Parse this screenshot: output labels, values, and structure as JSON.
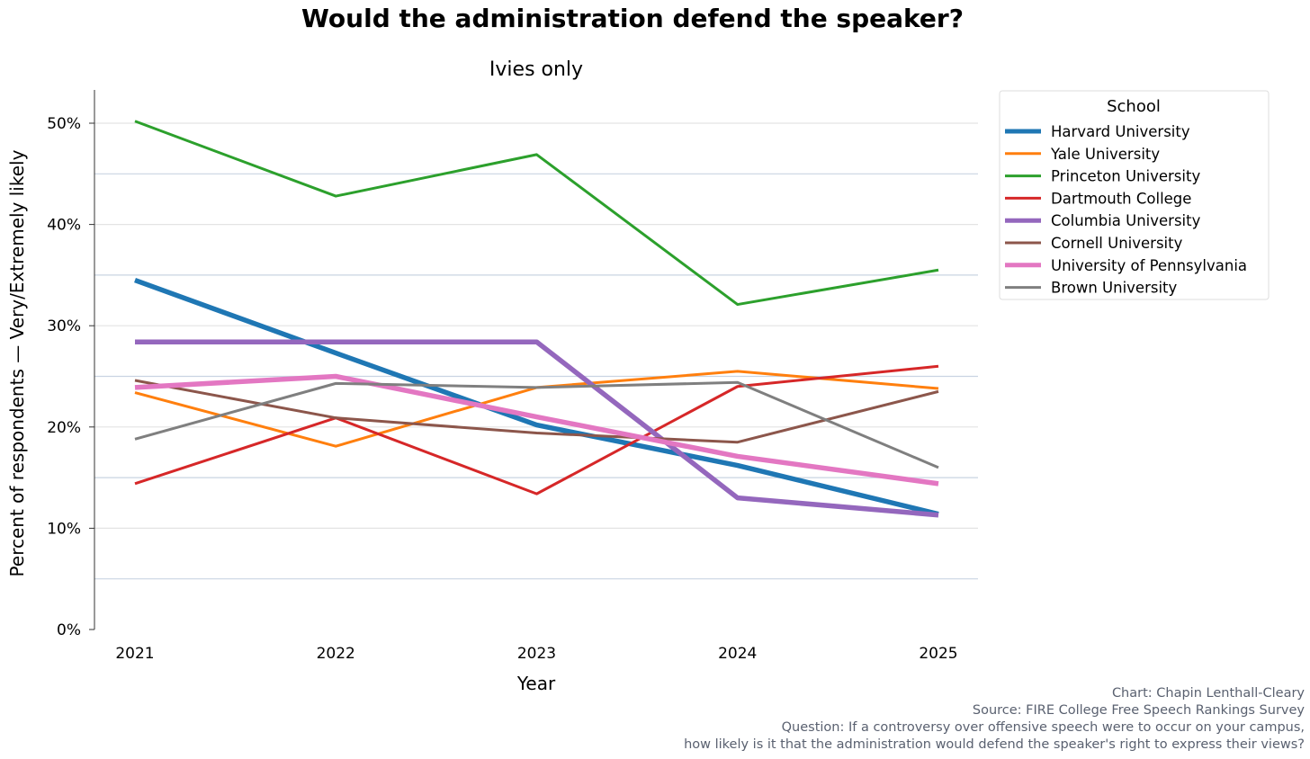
{
  "chart_data": {
    "type": "line",
    "title": "Would the administration defend the speaker?",
    "subtitle": "Ivies only",
    "xlabel": "Year",
    "ylabel": "Percent of respondents — Very/Extremely likely",
    "x": [
      2021,
      2022,
      2023,
      2024,
      2025
    ],
    "x_tick_labels": [
      "2021",
      "2022",
      "2023",
      "2024",
      "2025"
    ],
    "ylim": [
      0,
      53
    ],
    "y_ticks": [
      0,
      10,
      20,
      30,
      40,
      50
    ],
    "y_tick_labels": [
      "0%",
      "10%",
      "20%",
      "30%",
      "40%",
      "50%"
    ],
    "grid": true,
    "legend": {
      "title": "School",
      "placement": "top-right outside"
    },
    "series": [
      {
        "name": "Harvard University",
        "color": "#1f77b4",
        "bold": true,
        "values": [
          34.5,
          27.3,
          20.2,
          16.2,
          11.4
        ]
      },
      {
        "name": "Yale University",
        "color": "#ff7f0e",
        "bold": false,
        "values": [
          23.4,
          18.1,
          23.9,
          25.5,
          23.8
        ]
      },
      {
        "name": "Princeton University",
        "color": "#2ca02c",
        "bold": false,
        "values": [
          50.2,
          42.8,
          46.9,
          32.1,
          35.5
        ]
      },
      {
        "name": "Dartmouth College",
        "color": "#d62728",
        "bold": false,
        "values": [
          14.4,
          20.9,
          13.4,
          24.0,
          26.0
        ]
      },
      {
        "name": "Columbia University",
        "color": "#9467bd",
        "bold": true,
        "values": [
          28.4,
          28.4,
          28.4,
          13.0,
          11.3
        ]
      },
      {
        "name": "Cornell University",
        "color": "#8c564b",
        "bold": false,
        "values": [
          24.6,
          20.9,
          19.4,
          18.5,
          23.5
        ]
      },
      {
        "name": "University of Pennsylvania",
        "color": "#e377c2",
        "bold": true,
        "values": [
          23.9,
          25.0,
          21.0,
          17.1,
          14.4
        ]
      },
      {
        "name": "Brown University",
        "color": "#7f7f7f",
        "bold": false,
        "values": [
          18.8,
          24.3,
          23.9,
          24.4,
          16.0
        ]
      }
    ]
  },
  "footer": {
    "credit": "Chart: Chapin Lenthall-Cleary",
    "source": "Source: FIRE College Free Speech Rankings Survey",
    "question_1": "Question: If a controversy over offensive speech were to occur on your campus,",
    "question_2": "how likely is it that the administration would defend the speaker's right to express their views?"
  }
}
